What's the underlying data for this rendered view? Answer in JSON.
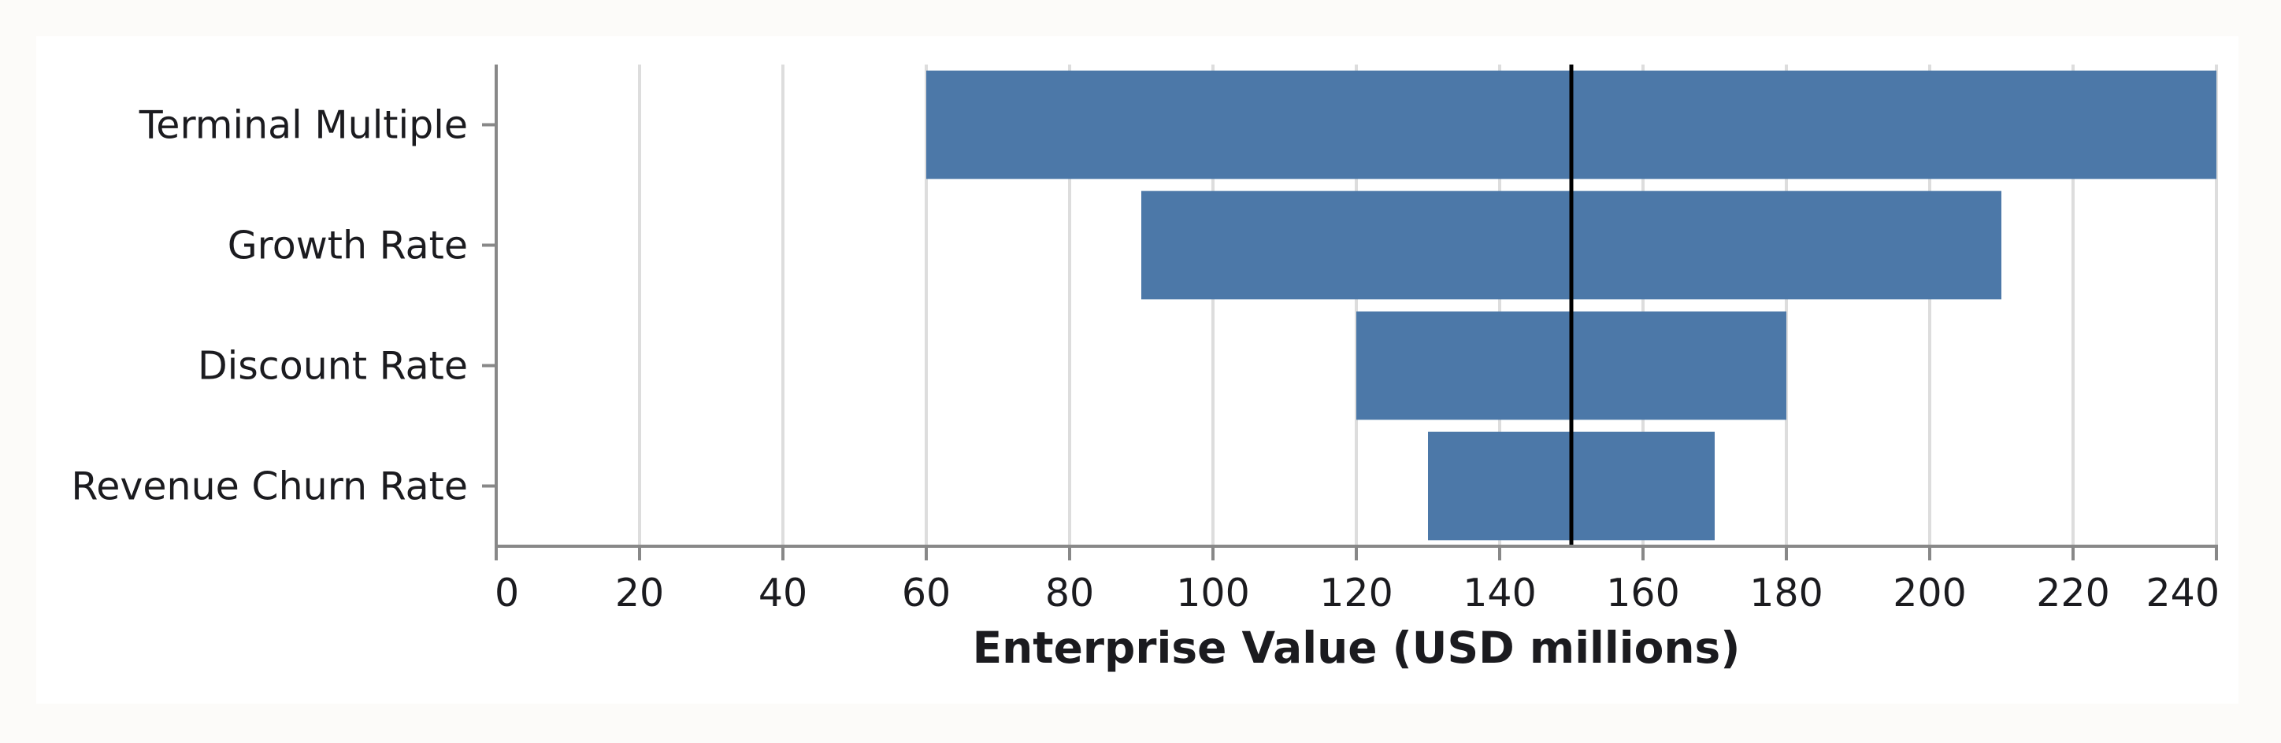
{
  "chart_data": {
    "type": "bar",
    "subtype": "tornado",
    "title": "",
    "xlabel": "Enterprise Value (USD millions)",
    "ylabel": "",
    "xlim": [
      0,
      240
    ],
    "xticks": [
      0,
      20,
      40,
      60,
      80,
      100,
      120,
      140,
      160,
      180,
      200,
      220,
      240
    ],
    "grid": true,
    "legend": "none",
    "base_value": 150,
    "categories": [
      "Terminal Multiple",
      "Growth Rate",
      "Discount Rate",
      "Revenue Churn Rate"
    ],
    "series": [
      {
        "low": 60,
        "high": 240
      },
      {
        "low": 90,
        "high": 210
      },
      {
        "low": 120,
        "high": 180
      },
      {
        "low": 130,
        "high": 170
      }
    ],
    "colors": {
      "bar": "#4c78a8",
      "grid": "#dddddd",
      "axis": "#888888",
      "reference": "#000000"
    }
  }
}
